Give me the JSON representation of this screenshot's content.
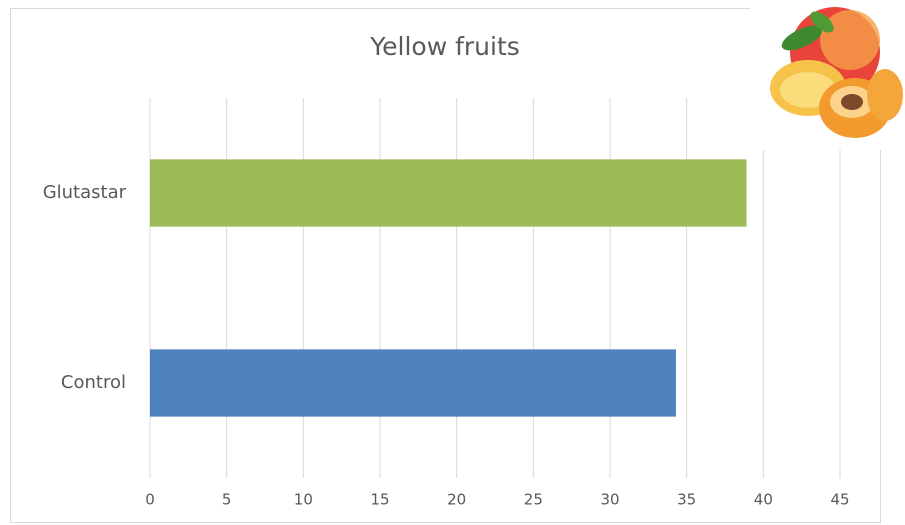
{
  "chart_data": {
    "type": "bar",
    "orientation": "horizontal",
    "title": "Yellow fruits",
    "categories": [
      "Glutastar",
      "Control"
    ],
    "values": [
      38.9,
      34.3
    ],
    "colors": [
      "#9bbb59",
      "#4f81bd"
    ],
    "xlim": [
      0,
      45
    ],
    "xticks": [
      0,
      5,
      10,
      15,
      20,
      25,
      30,
      35,
      40,
      45
    ],
    "grid": true
  }
}
